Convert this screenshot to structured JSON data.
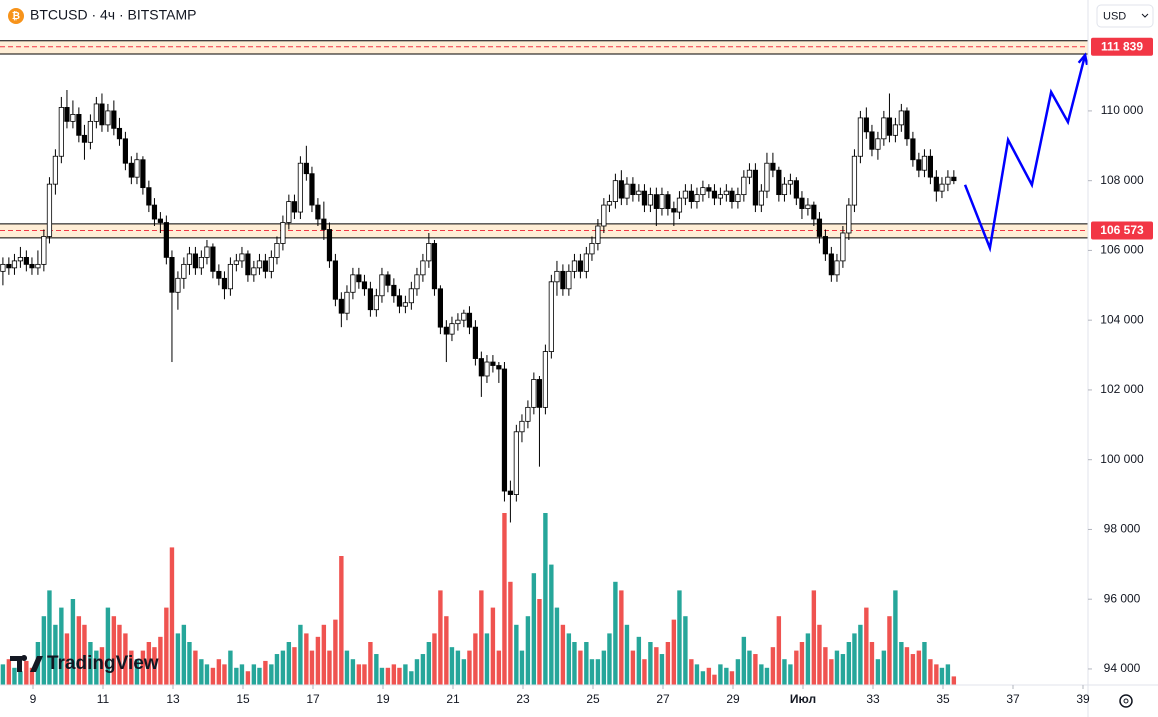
{
  "header": {
    "symbol": "BTCUSD · 4ч · BITSTAMP",
    "currency": "USD"
  },
  "watermark": "TradingView",
  "chart_data": {
    "type": "candlestick",
    "xlim": [
      8.057,
      39.143
    ],
    "ylim": [
      93540,
      113180
    ],
    "xticks": [
      9,
      11,
      13,
      15,
      17,
      19,
      21,
      23,
      25,
      27,
      29,
      {
        "value": 31,
        "label": "Июл"
      },
      33,
      35,
      37,
      39
    ],
    "yticks": [
      {
        "value": 94000,
        "label": "94 000"
      },
      {
        "value": 96000,
        "label": "96 000"
      },
      {
        "value": 98000,
        "label": "98 000"
      },
      {
        "value": 100000,
        "label": "100 000"
      },
      {
        "value": 102000,
        "label": "102 000"
      },
      {
        "value": 104000,
        "label": "104 000"
      },
      {
        "value": 106000,
        "label": "106 000"
      },
      {
        "value": 108000,
        "label": "108 000"
      },
      {
        "value": 110000,
        "label": "110 000"
      }
    ],
    "up_color": "#ffffff",
    "down_color": "#000000",
    "border_color": "#000000",
    "volume_up_color": "#26a69a",
    "volume_down_color": "#ef5350",
    "volume_lim": [
      0,
      100
    ],
    "x": [
      8.14,
      8.31,
      8.47,
      8.64,
      8.81,
      8.97,
      9.14,
      9.31,
      9.47,
      9.64,
      9.81,
      9.97,
      10.14,
      10.31,
      10.47,
      10.64,
      10.81,
      10.97,
      11.14,
      11.31,
      11.47,
      11.64,
      11.81,
      11.97,
      12.14,
      12.31,
      12.47,
      12.64,
      12.81,
      12.97,
      13.14,
      13.31,
      13.47,
      13.64,
      13.81,
      13.97,
      14.14,
      14.31,
      14.47,
      14.64,
      14.81,
      14.97,
      15.14,
      15.31,
      15.47,
      15.64,
      15.81,
      15.97,
      16.14,
      16.31,
      16.47,
      16.64,
      16.81,
      16.97,
      17.14,
      17.31,
      17.47,
      17.64,
      17.81,
      17.97,
      18.14,
      18.31,
      18.47,
      18.64,
      18.81,
      18.97,
      19.14,
      19.31,
      19.47,
      19.64,
      19.81,
      19.97,
      20.14,
      20.31,
      20.47,
      20.64,
      20.81,
      20.97,
      21.14,
      21.31,
      21.47,
      21.64,
      21.81,
      21.97,
      22.14,
      22.31,
      22.47,
      22.64,
      22.81,
      22.97,
      23.14,
      23.31,
      23.47,
      23.64,
      23.81,
      23.97,
      24.14,
      24.31,
      24.47,
      24.64,
      24.81,
      24.97,
      25.14,
      25.31,
      25.47,
      25.64,
      25.81,
      25.97,
      26.14,
      26.31,
      26.47,
      26.64,
      26.81,
      26.97,
      27.14,
      27.31,
      27.47,
      27.64,
      27.81,
      27.97,
      28.14,
      28.31,
      28.47,
      28.64,
      28.81,
      28.97,
      29.14,
      29.31,
      29.47,
      29.64,
      29.81,
      29.97,
      30.14,
      30.31,
      30.47,
      30.64,
      30.81,
      30.97,
      31.14,
      31.31,
      31.47,
      31.64,
      31.81,
      31.97,
      32.14,
      32.31,
      32.47,
      32.64,
      32.81,
      32.97,
      33.14,
      33.31,
      33.47,
      33.64,
      33.81,
      33.97,
      34.14,
      34.31,
      34.47,
      34.64,
      34.81,
      34.97,
      35.14,
      35.31
    ],
    "ohlc": [
      [
        105400,
        105800,
        105000,
        105600
      ],
      [
        105600,
        105800,
        105300,
        105500
      ],
      [
        105500,
        105900,
        105300,
        105700
      ],
      [
        105700,
        106100,
        105500,
        105800
      ],
      [
        105800,
        106000,
        105400,
        105600
      ],
      [
        105600,
        105800,
        105300,
        105500
      ],
      [
        105500,
        106000,
        105300,
        105600
      ],
      [
        105600,
        106600,
        105400,
        106400
      ],
      [
        106400,
        108100,
        106200,
        107900
      ],
      [
        107900,
        108900,
        107600,
        108700
      ],
      [
        108700,
        110400,
        108500,
        110100
      ],
      [
        110100,
        110600,
        109500,
        109700
      ],
      [
        109700,
        110300,
        109500,
        109900
      ],
      [
        109900,
        110100,
        109100,
        109300
      ],
      [
        109300,
        109600,
        108600,
        109100
      ],
      [
        109100,
        109900,
        108900,
        109700
      ],
      [
        109700,
        110400,
        109500,
        110200
      ],
      [
        110200,
        110500,
        109400,
        109600
      ],
      [
        109600,
        110200,
        109400,
        110000
      ],
      [
        110000,
        110300,
        109300,
        109500
      ],
      [
        109500,
        109800,
        109000,
        109200
      ],
      [
        109200,
        109400,
        108300,
        108500
      ],
      [
        108500,
        108700,
        107900,
        108100
      ],
      [
        108100,
        108800,
        107900,
        108600
      ],
      [
        108600,
        108700,
        107600,
        107800
      ],
      [
        107800,
        108000,
        107100,
        107300
      ],
      [
        107300,
        107500,
        106700,
        106900
      ],
      [
        106900,
        107100,
        106500,
        106800
      ],
      [
        106800,
        107000,
        105600,
        105800
      ],
      [
        105800,
        106000,
        102800,
        104800
      ],
      [
        104800,
        105400,
        104300,
        105200
      ],
      [
        105200,
        105800,
        104900,
        105600
      ],
      [
        105600,
        106100,
        105300,
        105900
      ],
      [
        105900,
        106100,
        105300,
        105500
      ],
      [
        105500,
        106000,
        105300,
        105800
      ],
      [
        105800,
        106300,
        105600,
        106100
      ],
      [
        106100,
        106200,
        105200,
        105400
      ],
      [
        105400,
        105600,
        105000,
        105200
      ],
      [
        105200,
        105400,
        104600,
        104900
      ],
      [
        104900,
        105800,
        104700,
        105600
      ],
      [
        105600,
        105900,
        105400,
        105700
      ],
      [
        105700,
        106100,
        105500,
        105900
      ],
      [
        105900,
        106000,
        105100,
        105300
      ],
      [
        105300,
        105700,
        105100,
        105500
      ],
      [
        105500,
        105900,
        105300,
        105700
      ],
      [
        105700,
        105900,
        105200,
        105400
      ],
      [
        105400,
        106000,
        105200,
        105800
      ],
      [
        105800,
        106400,
        105600,
        106200
      ],
      [
        106200,
        107000,
        106000,
        106800
      ],
      [
        106800,
        107600,
        106600,
        107400
      ],
      [
        107400,
        107600,
        106900,
        107100
      ],
      [
        107100,
        108700,
        106900,
        108500
      ],
      [
        108500,
        109000,
        108000,
        108200
      ],
      [
        108200,
        108400,
        107100,
        107300
      ],
      [
        107300,
        107500,
        106700,
        106900
      ],
      [
        106900,
        107400,
        106300,
        106600
      ],
      [
        106600,
        106800,
        105500,
        105700
      ],
      [
        105700,
        105900,
        104400,
        104600
      ],
      [
        104600,
        104800,
        103800,
        104200
      ],
      [
        104200,
        105000,
        104000,
        104800
      ],
      [
        104800,
        105500,
        104600,
        105300
      ],
      [
        105300,
        105500,
        104900,
        105100
      ],
      [
        105100,
        105300,
        104700,
        104900
      ],
      [
        104900,
        105100,
        104100,
        104300
      ],
      [
        104300,
        104900,
        104100,
        104700
      ],
      [
        104700,
        105500,
        104500,
        105300
      ],
      [
        105300,
        105400,
        104800,
        105000
      ],
      [
        105000,
        105200,
        104500,
        104700
      ],
      [
        104700,
        104900,
        104200,
        104400
      ],
      [
        104400,
        104700,
        104200,
        104500
      ],
      [
        104500,
        105100,
        104300,
        104900
      ],
      [
        104900,
        105500,
        104700,
        105300
      ],
      [
        105300,
        105900,
        105100,
        105700
      ],
      [
        105700,
        106500,
        105500,
        106200
      ],
      [
        106200,
        106300,
        104700,
        104900
      ],
      [
        104900,
        105000,
        103600,
        103800
      ],
      [
        103800,
        104000,
        102800,
        103600
      ],
      [
        103600,
        104100,
        103400,
        103900
      ],
      [
        103900,
        104200,
        103700,
        104000
      ],
      [
        104000,
        104300,
        103800,
        104200
      ],
      [
        104200,
        104400,
        103600,
        103800
      ],
      [
        103800,
        104000,
        102700,
        102900
      ],
      [
        102900,
        103100,
        101800,
        102400
      ],
      [
        102400,
        103000,
        102200,
        102800
      ],
      [
        102800,
        103000,
        102500,
        102700
      ],
      [
        102700,
        102800,
        102200,
        102600
      ],
      [
        102600,
        102800,
        98800,
        99100
      ],
      [
        99100,
        99400,
        98200,
        99000
      ],
      [
        99000,
        101000,
        98800,
        100800
      ],
      [
        100800,
        101300,
        100500,
        101100
      ],
      [
        101100,
        101700,
        100900,
        101500
      ],
      [
        101500,
        102500,
        101300,
        102300
      ],
      [
        102300,
        102400,
        99800,
        101500
      ],
      [
        101500,
        103300,
        101300,
        103100
      ],
      [
        103100,
        105300,
        102900,
        105100
      ],
      [
        105100,
        105700,
        104700,
        105400
      ],
      [
        105400,
        105600,
        104700,
        104900
      ],
      [
        104900,
        105600,
        104700,
        105400
      ],
      [
        105400,
        105900,
        105200,
        105700
      ],
      [
        105700,
        105900,
        105200,
        105400
      ],
      [
        105400,
        106100,
        105200,
        105900
      ],
      [
        105900,
        106400,
        105700,
        106200
      ],
      [
        106200,
        106900,
        106000,
        106700
      ],
      [
        106700,
        107500,
        106500,
        107300
      ],
      [
        107300,
        107600,
        107100,
        107400
      ],
      [
        107400,
        108200,
        107200,
        108000
      ],
      [
        108000,
        108300,
        107300,
        107500
      ],
      [
        107500,
        108100,
        107300,
        107900
      ],
      [
        107900,
        108100,
        107400,
        107600
      ],
      [
        107600,
        107900,
        107400,
        107700
      ],
      [
        107700,
        107900,
        107100,
        107300
      ],
      [
        107300,
        107800,
        107100,
        107600
      ],
      [
        107600,
        107800,
        106700,
        107200
      ],
      [
        107200,
        107800,
        107000,
        107600
      ],
      [
        107600,
        107700,
        107000,
        107200
      ],
      [
        107200,
        107400,
        106700,
        107100
      ],
      [
        107100,
        107700,
        106900,
        107500
      ],
      [
        107500,
        107900,
        107300,
        107700
      ],
      [
        107700,
        107900,
        107200,
        107400
      ],
      [
        107400,
        107800,
        107200,
        107600
      ],
      [
        107600,
        108000,
        107400,
        107800
      ],
      [
        107800,
        107900,
        107500,
        107700
      ],
      [
        107700,
        107900,
        107300,
        107500
      ],
      [
        107500,
        107800,
        107300,
        107600
      ],
      [
        107600,
        107900,
        107400,
        107700
      ],
      [
        107700,
        107800,
        107200,
        107400
      ],
      [
        107400,
        107800,
        107200,
        107600
      ],
      [
        107600,
        108300,
        107400,
        108100
      ],
      [
        108100,
        108500,
        107900,
        108300
      ],
      [
        108300,
        108500,
        107100,
        107300
      ],
      [
        107300,
        107900,
        107100,
        107700
      ],
      [
        107700,
        108800,
        107500,
        108500
      ],
      [
        108500,
        108800,
        108100,
        108300
      ],
      [
        108300,
        108400,
        107400,
        107600
      ],
      [
        107600,
        108100,
        107400,
        107900
      ],
      [
        107900,
        108200,
        107600,
        108000
      ],
      [
        108000,
        108100,
        107300,
        107500
      ],
      [
        107500,
        107700,
        106900,
        107200
      ],
      [
        107200,
        107500,
        107000,
        107300
      ],
      [
        107300,
        107400,
        106700,
        106900
      ],
      [
        106900,
        107100,
        106200,
        106400
      ],
      [
        106400,
        106600,
        105700,
        105900
      ],
      [
        105900,
        106100,
        105100,
        105300
      ],
      [
        105300,
        105900,
        105100,
        105700
      ],
      [
        105700,
        106700,
        105500,
        106500
      ],
      [
        106500,
        107500,
        106300,
        107300
      ],
      [
        107300,
        108900,
        107100,
        108700
      ],
      [
        108700,
        110000,
        108500,
        109800
      ],
      [
        109800,
        110100,
        109200,
        109400
      ],
      [
        109400,
        109600,
        108700,
        108900
      ],
      [
        108900,
        109400,
        108600,
        109200
      ],
      [
        109200,
        110000,
        109000,
        109800
      ],
      [
        109800,
        110500,
        109100,
        109300
      ],
      [
        109300,
        109800,
        109100,
        109600
      ],
      [
        109600,
        110200,
        109400,
        110000
      ],
      [
        110000,
        110100,
        109000,
        109200
      ],
      [
        109200,
        109400,
        108400,
        108600
      ],
      [
        108600,
        108800,
        108100,
        108300
      ],
      [
        108300,
        108900,
        108100,
        108700
      ],
      [
        108700,
        108900,
        107900,
        108100
      ],
      [
        108100,
        108300,
        107400,
        107700
      ],
      [
        107700,
        108100,
        107500,
        107900
      ],
      [
        107900,
        108300,
        107700,
        108100
      ],
      [
        108100,
        108300,
        107900,
        108000
      ]
    ],
    "volume": [
      12,
      15,
      10,
      8,
      14,
      10,
      25,
      40,
      55,
      35,
      45,
      30,
      50,
      40,
      35,
      25,
      20,
      22,
      45,
      40,
      35,
      30,
      20,
      15,
      20,
      25,
      22,
      28,
      45,
      80,
      30,
      35,
      25,
      20,
      15,
      12,
      10,
      15,
      12,
      20,
      10,
      12,
      8,
      12,
      10,
      14,
      12,
      18,
      20,
      25,
      22,
      35,
      30,
      20,
      28,
      35,
      20,
      38,
      75,
      20,
      15,
      12,
      12,
      25,
      18,
      10,
      10,
      12,
      10,
      12,
      8,
      15,
      18,
      25,
      30,
      55,
      40,
      22,
      20,
      15,
      20,
      30,
      55,
      30,
      45,
      20,
      100,
      60,
      35,
      20,
      40,
      65,
      50,
      100,
      70,
      45,
      35,
      30,
      25,
      20,
      25,
      15,
      15,
      20,
      30,
      60,
      55,
      35,
      20,
      28,
      15,
      25,
      22,
      18,
      25,
      38,
      55,
      40,
      15,
      12,
      8,
      10,
      6,
      12,
      10,
      8,
      15,
      28,
      20,
      18,
      12,
      10,
      22,
      40,
      15,
      12,
      20,
      25,
      30,
      55,
      35,
      22,
      15,
      20,
      18,
      25,
      30,
      35,
      45,
      25,
      15,
      20,
      40,
      55,
      25,
      22,
      18,
      20,
      25,
      15,
      12,
      10,
      12,
      5
    ],
    "levels": [
      {
        "value": 111839,
        "label": "111 839",
        "range": [
          111630,
          112010
        ],
        "color": "#f23645"
      },
      {
        "value": 106573,
        "label": "106 573",
        "range": [
          106360,
          106760
        ],
        "color": "#f23645"
      }
    ],
    "projection": {
      "color": "#0000ff",
      "x": [
        35.63,
        36.34,
        36.86,
        37.54,
        38.09,
        38.57,
        39.06
      ],
      "values": [
        107880,
        106070,
        109170,
        107880,
        110540,
        109680,
        111600
      ]
    }
  }
}
